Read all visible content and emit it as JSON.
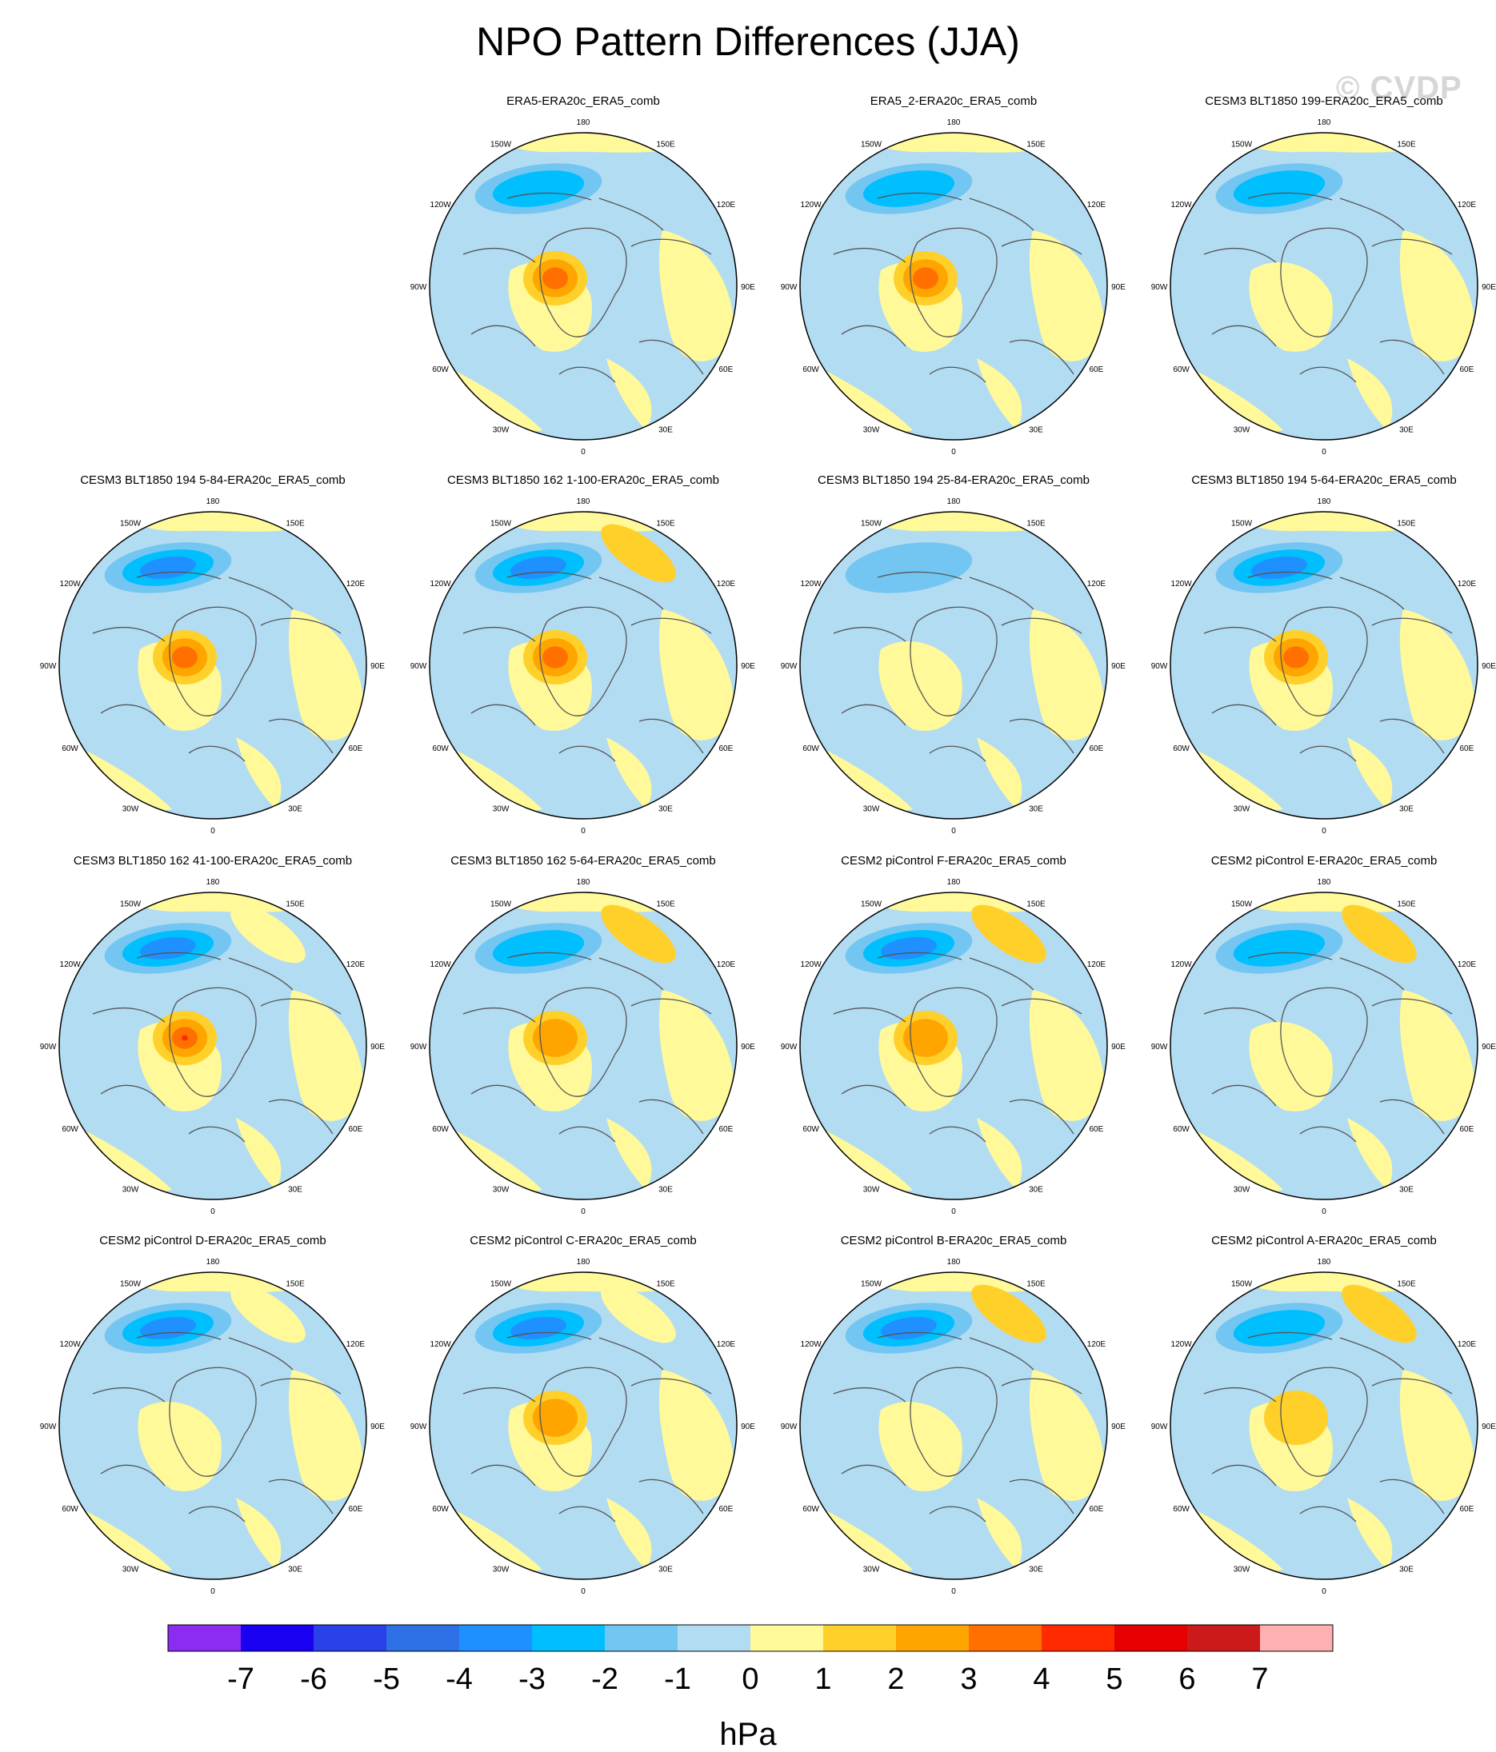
{
  "title": "NPO Pattern Differences (JJA)",
  "watermark": "© CVDP",
  "longitude_labels": [
    "180",
    "150E",
    "120E",
    "90E",
    "60E",
    "30E",
    "0",
    "30W",
    "60W",
    "90W",
    "120W",
    "150W"
  ],
  "panels": [
    {
      "title": "ERA5-ERA20c_ERA5_comb",
      "high": 3.5,
      "low": -2.5,
      "ext_high": 0
    },
    {
      "title": "ERA5_2-ERA20c_ERA5_comb",
      "high": 3.5,
      "low": -2.5,
      "ext_high": 0
    },
    {
      "title": "CESM3 BLT1850 199-ERA20c_ERA5_comb",
      "high": 0.5,
      "low": -2.5,
      "ext_high": 0
    },
    {
      "title": "CESM3 BLT1850 194 5-84-ERA20c_ERA5_comb",
      "high": 3.5,
      "low": -3.5,
      "ext_high": 0
    },
    {
      "title": "CESM3 BLT1850 162 1-100-ERA20c_ERA5_comb",
      "high": 3.5,
      "low": -3.5,
      "ext_high": 1.5
    },
    {
      "title": "CESM3 BLT1850 194 25-84-ERA20c_ERA5_comb",
      "high": 0.5,
      "low": -1.5,
      "ext_high": 0
    },
    {
      "title": "CESM3 BLT1850 194 5-64-ERA20c_ERA5_comb",
      "high": 3.5,
      "low": -3.5,
      "ext_high": 0
    },
    {
      "title": "CESM3 BLT1850 162 41-100-ERA20c_ERA5_comb",
      "high": 4.5,
      "low": -3.5,
      "ext_high": 0.5
    },
    {
      "title": "CESM3 BLT1850 162 5-64-ERA20c_ERA5_comb",
      "high": 2.5,
      "low": -2.5,
      "ext_high": 1.5
    },
    {
      "title": "CESM2 piControl F-ERA20c_ERA5_comb",
      "high": 2.5,
      "low": -3.5,
      "ext_high": 1.5
    },
    {
      "title": "CESM2 piControl E-ERA20c_ERA5_comb",
      "high": 0.5,
      "low": -2.5,
      "ext_high": 1.5
    },
    {
      "title": "CESM2 piControl D-ERA20c_ERA5_comb",
      "high": 0.5,
      "low": -3.5,
      "ext_high": 0.5
    },
    {
      "title": "CESM2 piControl C-ERA20c_ERA5_comb",
      "high": 2.5,
      "low": -3.5,
      "ext_high": 0.5
    },
    {
      "title": "CESM2 piControl B-ERA20c_ERA5_comb",
      "high": 0.5,
      "low": -3.5,
      "ext_high": 1.5
    },
    {
      "title": "CESM2 piControl A-ERA20c_ERA5_comb",
      "high": 1.5,
      "low": -2.5,
      "ext_high": 1.5
    }
  ],
  "colorbar": {
    "unit": "hPa",
    "tick_labels": [
      "-7",
      "-6",
      "-5",
      "-4",
      "-3",
      "-2",
      "-1",
      "0",
      "1",
      "2",
      "3",
      "4",
      "5",
      "6",
      "7"
    ],
    "colors": [
      "#8b2cf0",
      "#1a00f0",
      "#2a40e8",
      "#2e70e6",
      "#1e90ff",
      "#00bfff",
      "#73c6f2",
      "#b2dcf2",
      "#fff99a",
      "#ffd02a",
      "#ffa500",
      "#ff7000",
      "#ff2a00",
      "#e60000",
      "#cc1a1a",
      "#ffb0b0"
    ]
  }
}
